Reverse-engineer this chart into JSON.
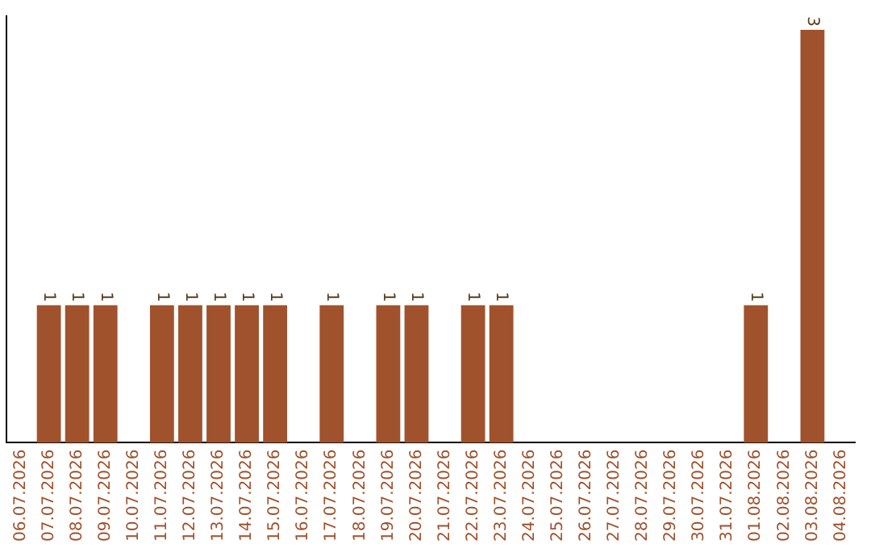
{
  "chart_data": {
    "type": "bar",
    "categories": [
      "06.07.2026",
      "07.07.2026",
      "08.07.2026",
      "09.07.2026",
      "10.07.2026",
      "11.07.2026",
      "12.07.2026",
      "13.07.2026",
      "14.07.2026",
      "15.07.2026",
      "16.07.2026",
      "17.07.2026",
      "18.07.2026",
      "19.07.2026",
      "20.07.2026",
      "21.07.2026",
      "22.07.2026",
      "23.07.2026",
      "24.07.2026",
      "25.07.2026",
      "26.07.2026",
      "27.07.2026",
      "28.07.2026",
      "29.07.2026",
      "30.07.2026",
      "31.07.2026",
      "01.08.2026",
      "02.08.2026",
      "03.08.2026",
      "04.08.2026"
    ],
    "values": [
      0,
      1,
      1,
      1,
      0,
      1,
      1,
      1,
      1,
      1,
      0,
      1,
      0,
      1,
      1,
      0,
      1,
      1,
      0,
      0,
      0,
      0,
      0,
      0,
      0,
      0,
      1,
      0,
      3,
      0
    ],
    "value_labels": [
      null,
      "1",
      "1",
      "1",
      null,
      "1",
      "1",
      "1",
      "1",
      "1",
      null,
      "1",
      null,
      "1",
      "1",
      null,
      "1",
      "1",
      null,
      null,
      null,
      null,
      null,
      null,
      null,
      null,
      "1",
      null,
      "3",
      null
    ],
    "color": "#a0522d",
    "ylim": [
      0,
      3.1
    ],
    "tick_labels": "x",
    "grid": false,
    "legend": false
  }
}
